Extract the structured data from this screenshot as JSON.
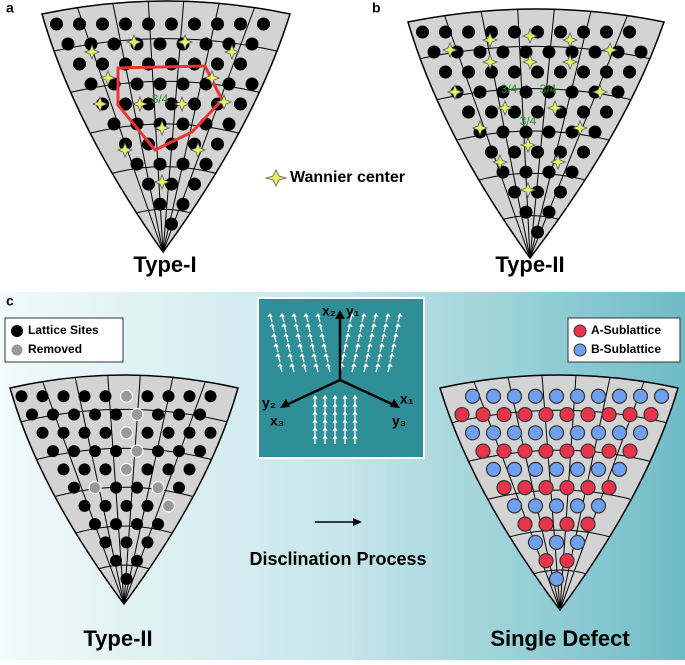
{
  "panels": {
    "a": {
      "label": "a",
      "title": "Type-I",
      "fraction": "3/4"
    },
    "b": {
      "label": "b",
      "title": "Type-II",
      "fractions": [
        "3/4",
        "3/4",
        "3/4"
      ]
    },
    "legend_wannier": "Wannier center",
    "c": {
      "label": "c",
      "legend_left": [
        "Lattice Sites",
        "Removed"
      ],
      "legend_right": [
        "A-Sublattice",
        "B-Sublattice"
      ],
      "axes": {
        "x2": "x₂",
        "y1": "y₁",
        "y2": "y₂",
        "x1": "x₁",
        "x3": "x₃",
        "y3": "y₃"
      },
      "process": "Disclination Process",
      "left_title": "Type-II",
      "right_title": "Single Defect"
    }
  }
}
